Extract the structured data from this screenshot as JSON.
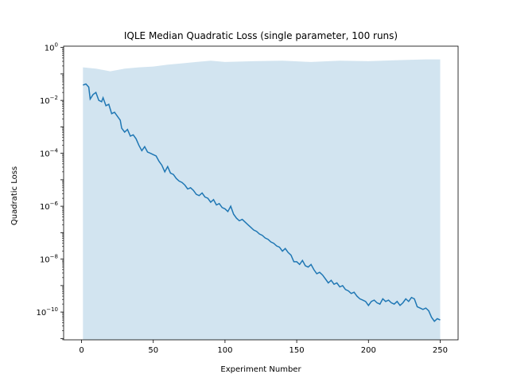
{
  "chart_data": {
    "type": "line",
    "title": "IQLE Median Quadratic Loss (single parameter, 100 runs)",
    "xlabel": "Experiment Number",
    "ylabel": "Quadratic Loss",
    "yscale": "log",
    "xlim": [
      -12.5,
      262.5
    ],
    "ylim_exponent": [
      -11.05,
      0.05
    ],
    "x_ticks": [
      0,
      50,
      100,
      150,
      200,
      250
    ],
    "y_tick_exponents": [
      -10,
      -8,
      -6,
      -4,
      -2,
      0
    ],
    "line_color": "#1f77b4",
    "band_color": "#1f77b4",
    "band_opacity": 0.2,
    "series": [
      {
        "role": "median",
        "points": [
          [
            1,
            -1.42
          ],
          [
            3,
            -1.38
          ],
          [
            5,
            -1.5
          ],
          [
            6,
            -1.95
          ],
          [
            8,
            -1.78
          ],
          [
            10,
            -1.7
          ],
          [
            12,
            -2.0
          ],
          [
            14,
            -2.05
          ],
          [
            15,
            -1.9
          ],
          [
            17,
            -2.2
          ],
          [
            19,
            -2.15
          ],
          [
            21,
            -2.5
          ],
          [
            23,
            -2.45
          ],
          [
            25,
            -2.6
          ],
          [
            27,
            -2.75
          ],
          [
            28,
            -3.05
          ],
          [
            30,
            -3.2
          ],
          [
            32,
            -3.1
          ],
          [
            34,
            -3.35
          ],
          [
            36,
            -3.3
          ],
          [
            38,
            -3.45
          ],
          [
            40,
            -3.7
          ],
          [
            42,
            -3.9
          ],
          [
            44,
            -3.75
          ],
          [
            46,
            -3.95
          ],
          [
            48,
            -4.0
          ],
          [
            50,
            -4.05
          ],
          [
            52,
            -4.1
          ],
          [
            54,
            -4.3
          ],
          [
            56,
            -4.45
          ],
          [
            58,
            -4.7
          ],
          [
            60,
            -4.5
          ],
          [
            62,
            -4.75
          ],
          [
            64,
            -4.8
          ],
          [
            66,
            -4.95
          ],
          [
            68,
            -5.05
          ],
          [
            70,
            -5.1
          ],
          [
            72,
            -5.2
          ],
          [
            74,
            -5.35
          ],
          [
            76,
            -5.3
          ],
          [
            78,
            -5.4
          ],
          [
            80,
            -5.55
          ],
          [
            82,
            -5.6
          ],
          [
            84,
            -5.5
          ],
          [
            86,
            -5.65
          ],
          [
            88,
            -5.7
          ],
          [
            90,
            -5.85
          ],
          [
            92,
            -5.75
          ],
          [
            94,
            -5.95
          ],
          [
            96,
            -5.9
          ],
          [
            98,
            -6.05
          ],
          [
            100,
            -6.1
          ],
          [
            102,
            -6.2
          ],
          [
            104,
            -6.0
          ],
          [
            106,
            -6.3
          ],
          [
            108,
            -6.45
          ],
          [
            110,
            -6.55
          ],
          [
            112,
            -6.5
          ],
          [
            114,
            -6.6
          ],
          [
            116,
            -6.7
          ],
          [
            118,
            -6.8
          ],
          [
            120,
            -6.9
          ],
          [
            122,
            -6.95
          ],
          [
            124,
            -7.05
          ],
          [
            126,
            -7.1
          ],
          [
            128,
            -7.2
          ],
          [
            130,
            -7.25
          ],
          [
            132,
            -7.35
          ],
          [
            134,
            -7.4
          ],
          [
            136,
            -7.5
          ],
          [
            138,
            -7.55
          ],
          [
            140,
            -7.7
          ],
          [
            142,
            -7.6
          ],
          [
            144,
            -7.75
          ],
          [
            146,
            -7.85
          ],
          [
            148,
            -8.1
          ],
          [
            150,
            -8.1
          ],
          [
            152,
            -8.2
          ],
          [
            154,
            -8.05
          ],
          [
            156,
            -8.25
          ],
          [
            158,
            -8.3
          ],
          [
            160,
            -8.2
          ],
          [
            162,
            -8.4
          ],
          [
            164,
            -8.55
          ],
          [
            166,
            -8.5
          ],
          [
            168,
            -8.6
          ],
          [
            170,
            -8.75
          ],
          [
            172,
            -8.9
          ],
          [
            174,
            -8.8
          ],
          [
            176,
            -8.95
          ],
          [
            178,
            -8.9
          ],
          [
            180,
            -9.05
          ],
          [
            182,
            -9.0
          ],
          [
            184,
            -9.15
          ],
          [
            186,
            -9.2
          ],
          [
            188,
            -9.3
          ],
          [
            190,
            -9.25
          ],
          [
            192,
            -9.4
          ],
          [
            194,
            -9.5
          ],
          [
            196,
            -9.55
          ],
          [
            198,
            -9.6
          ],
          [
            200,
            -9.75
          ],
          [
            202,
            -9.6
          ],
          [
            204,
            -9.55
          ],
          [
            206,
            -9.65
          ],
          [
            208,
            -9.7
          ],
          [
            210,
            -9.5
          ],
          [
            212,
            -9.6
          ],
          [
            214,
            -9.55
          ],
          [
            216,
            -9.65
          ],
          [
            218,
            -9.7
          ],
          [
            220,
            -9.6
          ],
          [
            222,
            -9.75
          ],
          [
            224,
            -9.65
          ],
          [
            226,
            -9.5
          ],
          [
            228,
            -9.6
          ],
          [
            230,
            -9.45
          ],
          [
            232,
            -9.5
          ],
          [
            234,
            -9.8
          ],
          [
            236,
            -9.85
          ],
          [
            238,
            -9.9
          ],
          [
            240,
            -9.85
          ],
          [
            242,
            -9.95
          ],
          [
            244,
            -10.2
          ],
          [
            246,
            -10.35
          ],
          [
            248,
            -10.25
          ],
          [
            250,
            -10.3
          ]
        ]
      },
      {
        "role": "interquartile-band-upper",
        "points": [
          [
            1,
            -0.75
          ],
          [
            10,
            -0.8
          ],
          [
            15,
            -0.85
          ],
          [
            20,
            -0.9
          ],
          [
            30,
            -0.8
          ],
          [
            40,
            -0.75
          ],
          [
            50,
            -0.72
          ],
          [
            60,
            -0.65
          ],
          [
            70,
            -0.6
          ],
          [
            80,
            -0.55
          ],
          [
            90,
            -0.5
          ],
          [
            100,
            -0.55
          ],
          [
            120,
            -0.52
          ],
          [
            140,
            -0.5
          ],
          [
            160,
            -0.55
          ],
          [
            180,
            -0.5
          ],
          [
            200,
            -0.52
          ],
          [
            220,
            -0.48
          ],
          [
            240,
            -0.45
          ],
          [
            250,
            -0.45
          ]
        ]
      },
      {
        "role": "interquartile-band-lower",
        "points": [
          [
            1,
            -11.05
          ],
          [
            250,
            -11.05
          ]
        ]
      }
    ]
  }
}
